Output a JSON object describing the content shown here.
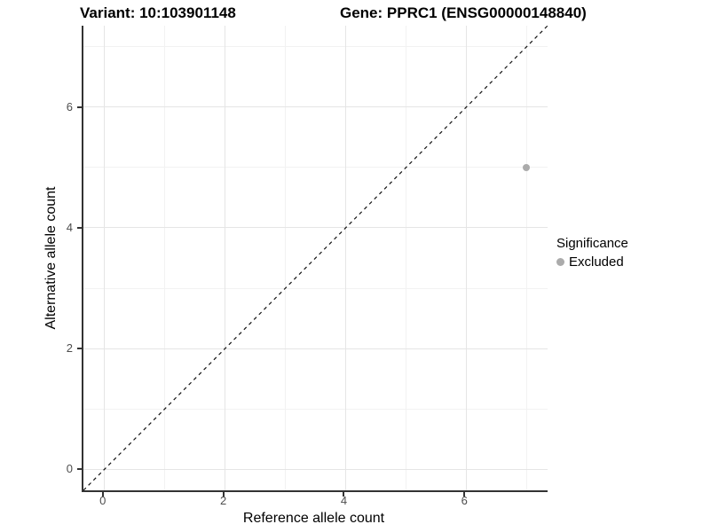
{
  "figure": {
    "title_variant": "Variant: 10:103901148",
    "title_gene": "Gene: PPRC1 (ENSG00000148840)"
  },
  "axes": {
    "x": {
      "label": "Reference allele count",
      "tick_labels": [
        "0",
        "2",
        "4",
        "6"
      ]
    },
    "y": {
      "label": "Alternative allele count",
      "tick_labels": [
        "0",
        "2",
        "4",
        "6"
      ]
    }
  },
  "legend": {
    "title": "Significance",
    "items": [
      {
        "label": "Excluded",
        "color": "#ababab"
      }
    ]
  },
  "chart_data": {
    "type": "scatter",
    "title": "Variant: 10:103901148 | Gene: PPRC1 (ENSG00000148840)",
    "xlabel": "Reference allele count",
    "ylabel": "Alternative allele count",
    "xlim": [
      -0.35,
      7.35
    ],
    "ylim": [
      -0.35,
      7.35
    ],
    "x_breaks": [
      0,
      2,
      4,
      6
    ],
    "x_tick_labels": [
      "0",
      "2",
      "4",
      "6"
    ],
    "x_minor_breaks": [
      1,
      3,
      5,
      7
    ],
    "y_breaks": [
      0,
      2,
      4,
      6
    ],
    "y_tick_labels": [
      "0",
      "2",
      "4",
      "6"
    ],
    "y_minor_breaks": [
      1,
      3,
      5,
      7
    ],
    "grid": true,
    "legend_position": "right",
    "reference_line": {
      "kind": "identity",
      "slope": 1,
      "intercept": 0,
      "style": "dashed",
      "color": "#111111"
    },
    "series": [
      {
        "name": "Excluded",
        "color": "#ababab",
        "points": [
          {
            "x": 7,
            "y": 5
          }
        ]
      }
    ]
  },
  "colors": {
    "background": "#ffffff",
    "axis_line": "#333333",
    "tick_text": "#4d4d4d",
    "grid_major": "#e5e5e5",
    "grid_minor": "#f2f2f2",
    "point": "#ababab"
  }
}
